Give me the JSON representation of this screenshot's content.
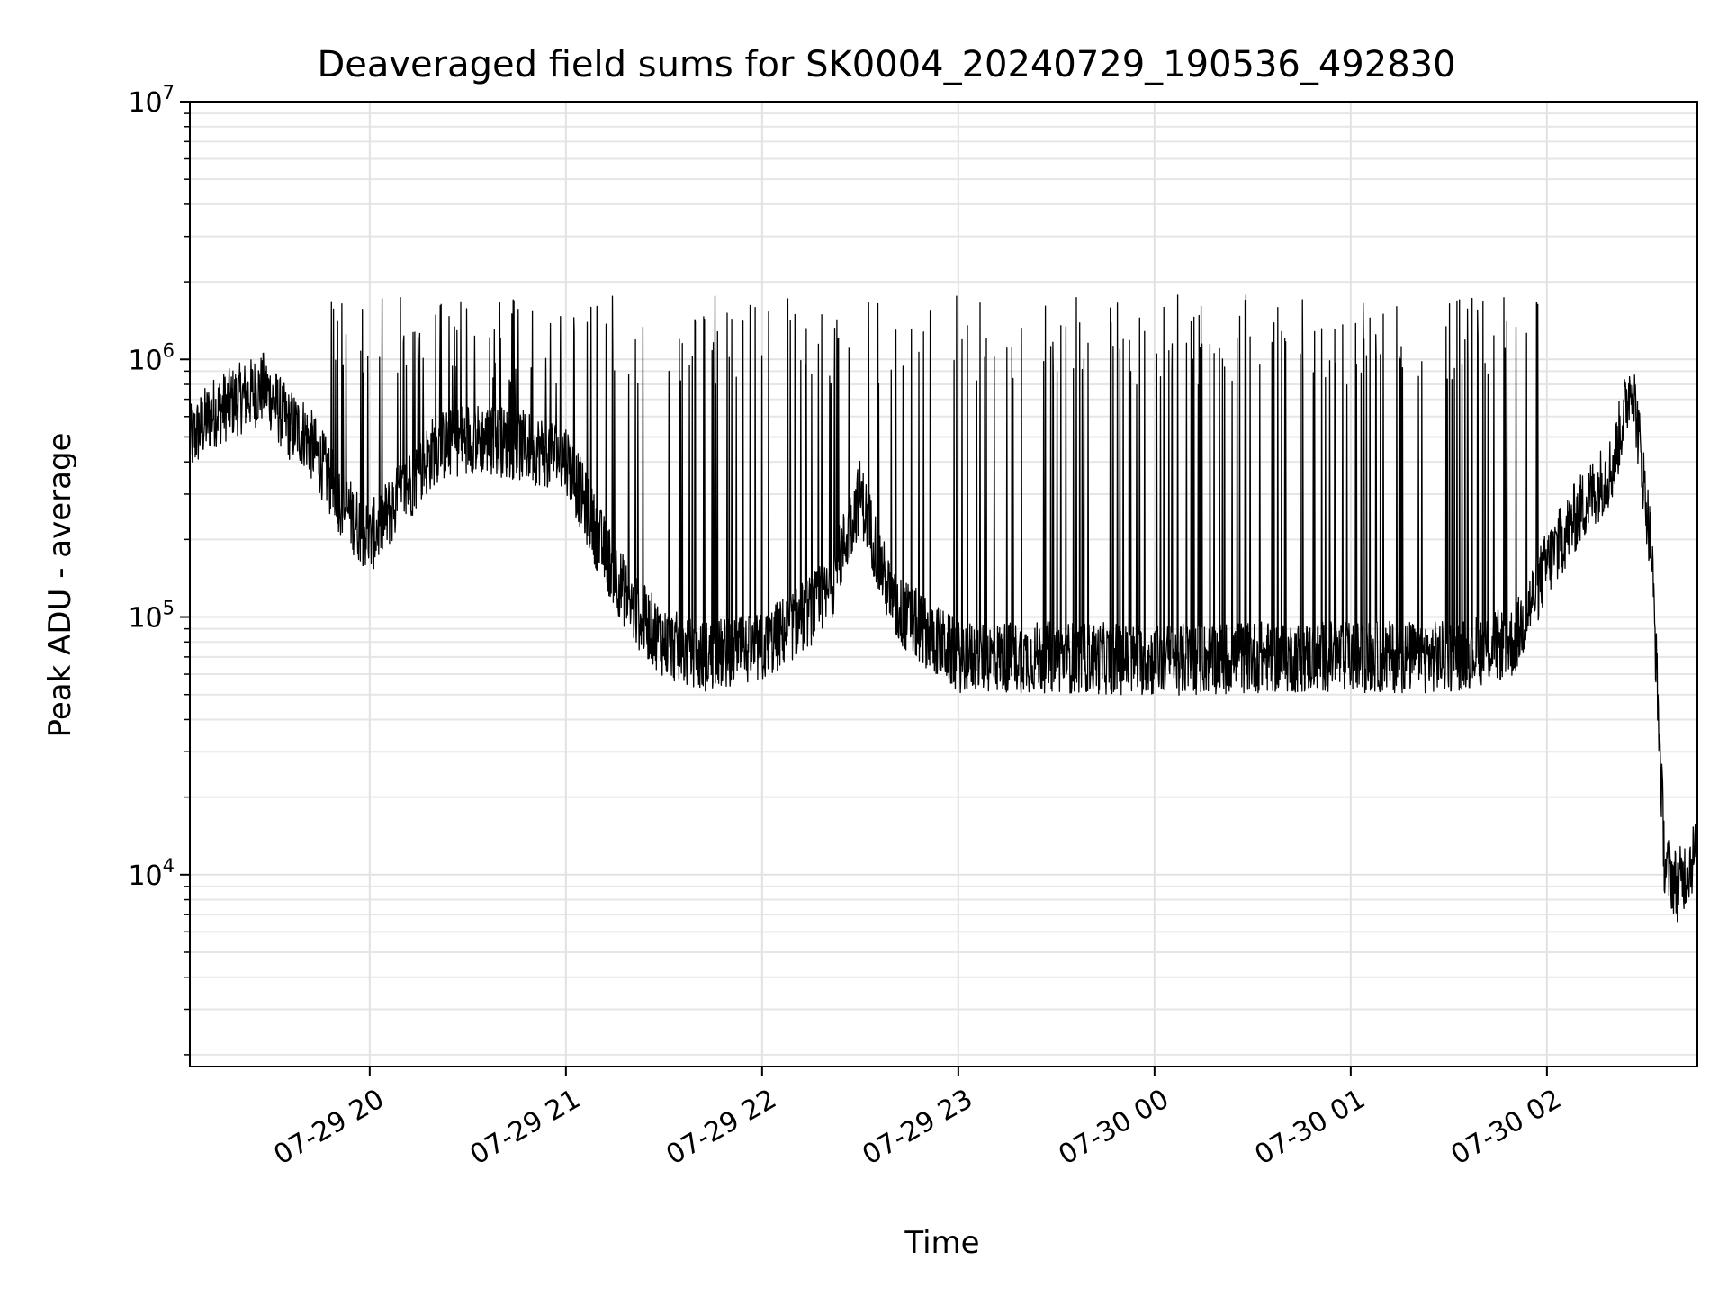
{
  "chart_data": {
    "type": "line",
    "title": "Deaveraged field sums for SK0004_20240729_190536_492830",
    "xlabel": "Time",
    "ylabel": "Peak ADU - average",
    "y_scale": "log",
    "ylim": [
      1800,
      10000000
    ],
    "xlim": [
      "2024-07-29 19:05",
      "2024-07-30 02:46"
    ],
    "x_ticks": [
      {
        "time": "2024-07-29 20:00",
        "label": "07-29 20"
      },
      {
        "time": "2024-07-29 21:00",
        "label": "07-29 21"
      },
      {
        "time": "2024-07-29 22:00",
        "label": "07-29 22"
      },
      {
        "time": "2024-07-29 23:00",
        "label": "07-29 23"
      },
      {
        "time": "2024-07-30 00:00",
        "label": "07-30 00"
      },
      {
        "time": "2024-07-30 01:00",
        "label": "07-30 01"
      },
      {
        "time": "2024-07-30 02:00",
        "label": "07-30 02"
      }
    ],
    "y_ticks": [
      {
        "value": 10000,
        "base": "10",
        "exp": "4"
      },
      {
        "value": 100000,
        "base": "10",
        "exp": "5"
      },
      {
        "value": 1000000,
        "base": "10",
        "exp": "6"
      },
      {
        "value": 10000000,
        "base": "10",
        "exp": "7"
      }
    ],
    "grid": true,
    "grid_minor": true,
    "series_color": "#000000",
    "series": [
      {
        "x": [
          "2024-07-29 19:05",
          "2024-07-29 19:12",
          "2024-07-29 19:20",
          "2024-07-29 19:28",
          "2024-07-29 19:35",
          "2024-07-29 19:40",
          "2024-07-29 19:45",
          "2024-07-29 19:50",
          "2024-07-29 19:55",
          "2024-07-29 20:00",
          "2024-07-29 20:10",
          "2024-07-29 20:20",
          "2024-07-29 20:30",
          "2024-07-29 20:40",
          "2024-07-29 20:50",
          "2024-07-29 21:00",
          "2024-07-29 21:10",
          "2024-07-29 21:20",
          "2024-07-29 21:30",
          "2024-07-29 21:40",
          "2024-07-29 22:00",
          "2024-07-29 22:20",
          "2024-07-29 22:30",
          "2024-07-29 22:40",
          "2024-07-29 23:00",
          "2024-07-29 23:30",
          "2024-07-30 00:00",
          "2024-07-30 00:30",
          "2024-07-30 01:00",
          "2024-07-30 01:30",
          "2024-07-30 01:50",
          "2024-07-30 02:00",
          "2024-07-30 02:10",
          "2024-07-30 02:20",
          "2024-07-30 02:26",
          "2024-07-30 02:32",
          "2024-07-30 02:36",
          "2024-07-30 02:40",
          "2024-07-30 02:46"
        ],
        "y": [
          480000,
          620000,
          700000,
          780000,
          560000,
          520000,
          400000,
          300000,
          240000,
          200000,
          300000,
          450000,
          500000,
          480000,
          450000,
          420000,
          200000,
          110000,
          80000,
          70000,
          75000,
          120000,
          300000,
          110000,
          70000,
          70000,
          68000,
          70000,
          70000,
          70000,
          80000,
          160000,
          260000,
          380000,
          850000,
          180000,
          11000,
          9000,
          12500
        ]
      }
    ]
  }
}
